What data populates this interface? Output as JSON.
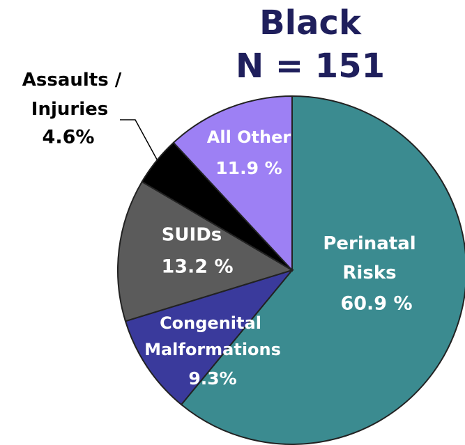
{
  "chart_data": {
    "type": "pie",
    "title": "Black",
    "subtitle": "N = 151",
    "categories": [
      "Perinatal Risks",
      "Congenital Malformations",
      "SUIDs",
      "Assaults / Injuries",
      "All Other"
    ],
    "values": [
      60.9,
      9.3,
      13.2,
      4.6,
      11.9
    ],
    "value_labels": [
      "60.9 %",
      "9.3%",
      "13.2 %",
      "4.6%",
      "11.9 %"
    ],
    "colors": [
      "#3b8b90",
      "#3a3a9c",
      "#5b5b5b",
      "#000000",
      "#9d80f4"
    ]
  }
}
